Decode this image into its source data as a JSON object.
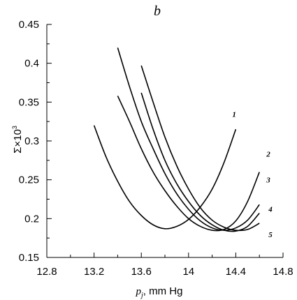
{
  "chart_data": {
    "type": "line",
    "panel_label": "b",
    "xlabel": {
      "main": "p",
      "sub": "j",
      "rest": ", mm Hg"
    },
    "ylabel": {
      "main": "Σ×10",
      "sup": "3"
    },
    "xlim": [
      12.8,
      14.8
    ],
    "ylim": [
      0.15,
      0.45
    ],
    "xticks": [
      "12.8",
      "13.2",
      "13.6",
      "14",
      "14.4",
      "14.8"
    ],
    "yticks": [
      "0.15",
      "0.2",
      "0.25",
      "0.3",
      "0.35",
      "0.4",
      "0.45"
    ],
    "grid": false,
    "series": [
      {
        "name": "1",
        "x": [
          13.2,
          13.3,
          13.4,
          13.5,
          13.6,
          13.7,
          13.8,
          13.9,
          14.0,
          14.1,
          14.2,
          14.3,
          14.4
        ],
        "y": [
          0.32,
          0.28,
          0.248,
          0.222,
          0.204,
          0.192,
          0.187,
          0.19,
          0.199,
          0.215,
          0.238,
          0.272,
          0.315
        ]
      },
      {
        "name": "2",
        "x": [
          13.4,
          13.5,
          13.6,
          13.7,
          13.8,
          13.9,
          14.0,
          14.1,
          14.2,
          14.3,
          14.4,
          14.5,
          14.6
        ],
        "y": [
          0.358,
          0.325,
          0.29,
          0.26,
          0.236,
          0.216,
          0.2,
          0.19,
          0.185,
          0.186,
          0.197,
          0.222,
          0.26
        ]
      },
      {
        "name": "3",
        "x": [
          13.4,
          13.5,
          13.6,
          13.7,
          13.8,
          13.9,
          14.0,
          14.1,
          14.2,
          14.3,
          14.4,
          14.5,
          14.6
        ],
        "y": [
          0.42,
          0.37,
          0.325,
          0.29,
          0.258,
          0.232,
          0.212,
          0.197,
          0.188,
          0.185,
          0.188,
          0.198,
          0.218
        ]
      },
      {
        "name": "4",
        "x": [
          13.6,
          13.7,
          13.8,
          13.9,
          14.0,
          14.1,
          14.2,
          14.3,
          14.4,
          14.5,
          14.6
        ],
        "y": [
          0.362,
          0.315,
          0.275,
          0.245,
          0.222,
          0.204,
          0.192,
          0.185,
          0.184,
          0.19,
          0.207
        ]
      },
      {
        "name": "5",
        "x": [
          13.6,
          13.7,
          13.8,
          13.9,
          14.0,
          14.1,
          14.2,
          14.3,
          14.4,
          14.5,
          14.6
        ],
        "y": [
          0.397,
          0.35,
          0.305,
          0.268,
          0.238,
          0.214,
          0.198,
          0.189,
          0.185,
          0.186,
          0.194
        ]
      }
    ]
  }
}
